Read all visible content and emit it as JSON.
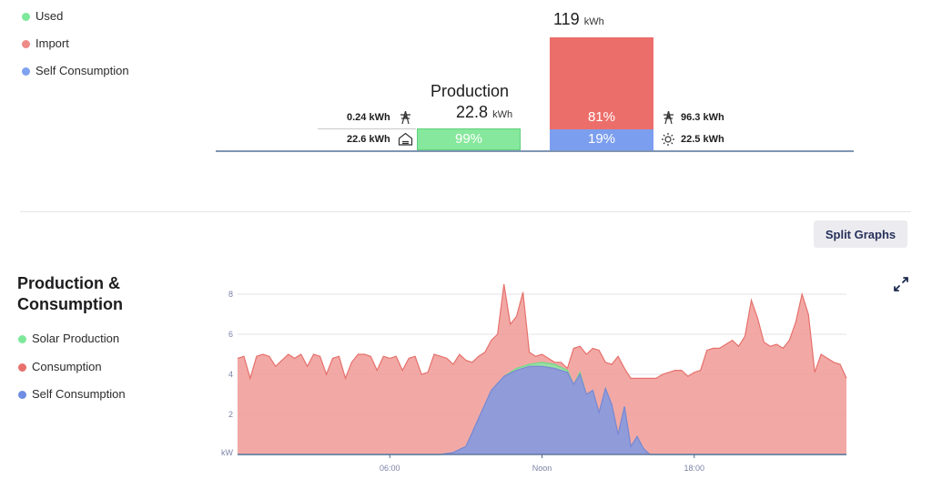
{
  "summary": {
    "legend": [
      {
        "label": "Used",
        "color": "#7ee89a"
      },
      {
        "label": "Import",
        "color": "#ee7471"
      },
      {
        "label": "Self Consumption",
        "color": "#7fa2ee"
      }
    ],
    "production_title": "Production",
    "production_value": "22.8",
    "production_unit": "kWh",
    "consumption_value": "119",
    "consumption_unit": "kWh",
    "left_import": "0.24 kWh",
    "left_used": "22.6 kWh",
    "used_pct": "99%",
    "used_fraction": 0.99,
    "import_pct": "81%",
    "import_fraction": 0.81,
    "self_pct": "19%",
    "self_fraction": 0.19,
    "right_import": "96.3 kWh",
    "right_self": "22.5 kWh"
  },
  "controls": {
    "split_graphs_label": "Split Graphs"
  },
  "graph": {
    "title_line1": "Production &",
    "title_line2": "Consumption",
    "legend": [
      {
        "label": "Solar Production",
        "color": "#7ee89a"
      },
      {
        "label": "Consumption",
        "color": "#e8706c"
      },
      {
        "label": "Self Consumption",
        "color": "#7d8ee0"
      }
    ]
  },
  "chart_data": {
    "type": "area",
    "xlabel": "",
    "ylabel": "kW",
    "x_range_hours": [
      0,
      24
    ],
    "x_tick_labels": [
      {
        "hour": 6,
        "label": "06:00"
      },
      {
        "hour": 12,
        "label": "Noon"
      },
      {
        "hour": 18,
        "label": "18:00"
      }
    ],
    "ylim": [
      0,
      8.5
    ],
    "y_ticks": [
      2,
      4,
      6,
      8
    ],
    "y_unit_label": "kW",
    "grid": true,
    "series": [
      {
        "name": "Consumption",
        "color": "#ec8a86",
        "points": [
          [
            0.0,
            4.8
          ],
          [
            0.25,
            4.9
          ],
          [
            0.5,
            3.8
          ],
          [
            0.75,
            4.9
          ],
          [
            1.0,
            5.0
          ],
          [
            1.25,
            4.9
          ],
          [
            1.5,
            4.4
          ],
          [
            1.75,
            4.7
          ],
          [
            2.0,
            5.0
          ],
          [
            2.25,
            4.8
          ],
          [
            2.5,
            5.0
          ],
          [
            2.75,
            4.4
          ],
          [
            3.0,
            5.0
          ],
          [
            3.25,
            4.9
          ],
          [
            3.5,
            4.0
          ],
          [
            3.75,
            4.8
          ],
          [
            4.0,
            4.9
          ],
          [
            4.25,
            3.8
          ],
          [
            4.5,
            4.6
          ],
          [
            4.75,
            5.0
          ],
          [
            5.0,
            5.0
          ],
          [
            5.25,
            4.9
          ],
          [
            5.5,
            4.2
          ],
          [
            5.75,
            4.9
          ],
          [
            6.0,
            4.8
          ],
          [
            6.25,
            4.9
          ],
          [
            6.5,
            4.2
          ],
          [
            6.75,
            4.8
          ],
          [
            7.0,
            4.9
          ],
          [
            7.25,
            4.0
          ],
          [
            7.5,
            4.1
          ],
          [
            7.75,
            5.0
          ],
          [
            8.0,
            4.9
          ],
          [
            8.25,
            4.8
          ],
          [
            8.5,
            4.5
          ],
          [
            8.75,
            5.0
          ],
          [
            9.0,
            4.7
          ],
          [
            9.25,
            4.6
          ],
          [
            9.5,
            4.9
          ],
          [
            9.75,
            5.1
          ],
          [
            10.0,
            5.7
          ],
          [
            10.25,
            6.0
          ],
          [
            10.5,
            8.5
          ],
          [
            10.75,
            6.5
          ],
          [
            11.0,
            6.9
          ],
          [
            11.25,
            8.1
          ],
          [
            11.5,
            5.1
          ],
          [
            11.75,
            4.9
          ],
          [
            12.0,
            5.0
          ],
          [
            12.25,
            4.8
          ],
          [
            12.5,
            4.6
          ],
          [
            12.75,
            4.6
          ],
          [
            13.0,
            4.3
          ],
          [
            13.25,
            5.3
          ],
          [
            13.5,
            5.4
          ],
          [
            13.75,
            5.0
          ],
          [
            14.0,
            5.3
          ],
          [
            14.25,
            5.2
          ],
          [
            14.5,
            4.6
          ],
          [
            14.75,
            4.5
          ],
          [
            15.0,
            4.9
          ],
          [
            15.25,
            4.3
          ],
          [
            15.5,
            3.8
          ],
          [
            15.75,
            3.8
          ],
          [
            16.0,
            3.8
          ],
          [
            16.25,
            3.8
          ],
          [
            16.5,
            3.8
          ],
          [
            16.75,
            4.0
          ],
          [
            17.0,
            4.1
          ],
          [
            17.25,
            4.2
          ],
          [
            17.5,
            4.2
          ],
          [
            17.75,
            3.9
          ],
          [
            18.0,
            4.1
          ],
          [
            18.25,
            4.2
          ],
          [
            18.5,
            5.2
          ],
          [
            18.75,
            5.3
          ],
          [
            19.0,
            5.3
          ],
          [
            19.25,
            5.5
          ],
          [
            19.5,
            5.7
          ],
          [
            19.75,
            5.4
          ],
          [
            20.0,
            5.9
          ],
          [
            20.25,
            7.7
          ],
          [
            20.5,
            6.8
          ],
          [
            20.75,
            5.6
          ],
          [
            21.0,
            5.4
          ],
          [
            21.25,
            5.5
          ],
          [
            21.5,
            5.3
          ],
          [
            21.75,
            5.7
          ],
          [
            22.0,
            6.6
          ],
          [
            22.25,
            8.0
          ],
          [
            22.5,
            7.0
          ],
          [
            22.75,
            4.1
          ],
          [
            23.0,
            5.0
          ],
          [
            23.25,
            4.8
          ],
          [
            23.5,
            4.6
          ],
          [
            23.75,
            4.5
          ],
          [
            24.0,
            3.8
          ]
        ]
      },
      {
        "name": "Solar Production",
        "color": "#7ee89a",
        "points": [
          [
            0.0,
            0.0
          ],
          [
            8.0,
            0.0
          ],
          [
            8.5,
            0.1
          ],
          [
            9.0,
            0.4
          ],
          [
            9.5,
            1.8
          ],
          [
            10.0,
            3.2
          ],
          [
            10.5,
            3.9
          ],
          [
            11.0,
            4.3
          ],
          [
            11.5,
            4.5
          ],
          [
            12.0,
            4.6
          ],
          [
            12.5,
            4.5
          ],
          [
            13.0,
            4.2
          ],
          [
            13.25,
            3.5
          ],
          [
            13.5,
            4.1
          ],
          [
            13.75,
            3.0
          ],
          [
            14.0,
            3.2
          ],
          [
            14.25,
            2.1
          ],
          [
            14.5,
            3.3
          ],
          [
            14.75,
            2.5
          ],
          [
            15.0,
            1.0
          ],
          [
            15.25,
            2.4
          ],
          [
            15.5,
            0.4
          ],
          [
            15.75,
            0.9
          ],
          [
            16.0,
            0.3
          ],
          [
            16.25,
            0.0
          ],
          [
            24.0,
            0.0
          ]
        ]
      },
      {
        "name": "Self Consumption",
        "color": "#8d9ad9",
        "points": [
          [
            0.0,
            0.0
          ],
          [
            8.0,
            0.0
          ],
          [
            8.5,
            0.1
          ],
          [
            9.0,
            0.4
          ],
          [
            9.5,
            1.8
          ],
          [
            10.0,
            3.2
          ],
          [
            10.5,
            3.9
          ],
          [
            11.0,
            4.2
          ],
          [
            11.5,
            4.4
          ],
          [
            12.0,
            4.4
          ],
          [
            12.5,
            4.3
          ],
          [
            13.0,
            4.1
          ],
          [
            13.25,
            3.5
          ],
          [
            13.5,
            4.0
          ],
          [
            13.75,
            3.0
          ],
          [
            14.0,
            3.2
          ],
          [
            14.25,
            2.1
          ],
          [
            14.5,
            3.3
          ],
          [
            14.75,
            2.5
          ],
          [
            15.0,
            1.0
          ],
          [
            15.25,
            2.4
          ],
          [
            15.5,
            0.4
          ],
          [
            15.75,
            0.9
          ],
          [
            16.0,
            0.3
          ],
          [
            16.25,
            0.0
          ],
          [
            24.0,
            0.0
          ]
        ]
      }
    ]
  }
}
